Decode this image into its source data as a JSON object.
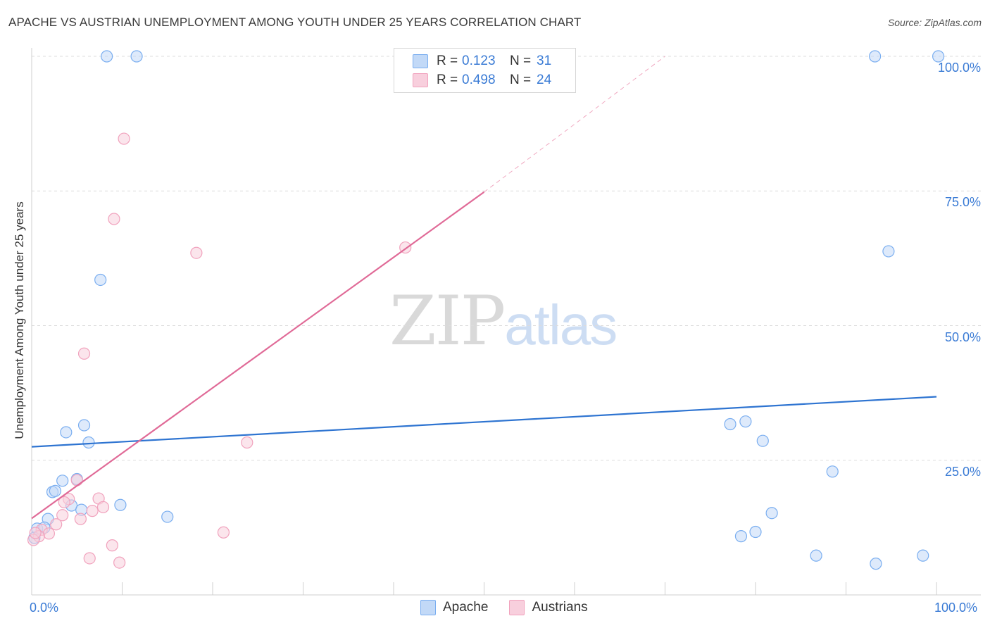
{
  "title": "APACHE VS AUSTRIAN UNEMPLOYMENT AMONG YOUTH UNDER 25 YEARS CORRELATION CHART",
  "source": "Source: ZipAtlas.com",
  "watermark": {
    "zip": "ZIP",
    "atlas": "atlas"
  },
  "legend": {
    "apache": {
      "r_label": "R =",
      "r_value": "0.123",
      "n_label": "N =",
      "n_value": "31"
    },
    "austrians": {
      "r_label": "R =",
      "r_value": "0.498",
      "n_label": "N =",
      "n_value": "24"
    }
  },
  "bottom_legend": {
    "apache": "Apache",
    "austrians": "Austrians"
  },
  "chart_data": {
    "type": "scatter",
    "title": "APACHE VS AUSTRIAN UNEMPLOYMENT AMONG YOUTH UNDER 25 YEARS CORRELATION CHART",
    "xlabel": "",
    "ylabel": "Unemployment Among Youth under 25 years",
    "xlim": [
      0,
      100
    ],
    "ylim": [
      0,
      100
    ],
    "x_tick_labels": [
      "0.0%",
      "100.0%"
    ],
    "y_tick_labels": [
      "25.0%",
      "50.0%",
      "75.0%",
      "100.0%"
    ],
    "y_ticks": [
      25,
      50,
      75,
      100
    ],
    "series": [
      {
        "name": "Apache",
        "color": "#7aaef0",
        "fill": "#c2d9f7",
        "trend": {
          "x": [
            0,
            100
          ],
          "y": [
            27.5,
            36.8
          ],
          "color": "#2e74d1"
        },
        "points": [
          {
            "x": 8.3,
            "y": 100
          },
          {
            "x": 11.6,
            "y": 100
          },
          {
            "x": 93.2,
            "y": 100
          },
          {
            "x": 100.2,
            "y": 100
          },
          {
            "x": 94.7,
            "y": 63.8
          },
          {
            "x": 7.6,
            "y": 58.5
          },
          {
            "x": 5.8,
            "y": 31.5
          },
          {
            "x": 3.8,
            "y": 30.2
          },
          {
            "x": 6.3,
            "y": 28.3
          },
          {
            "x": 77.2,
            "y": 31.7
          },
          {
            "x": 78.9,
            "y": 32.2
          },
          {
            "x": 80.8,
            "y": 28.6
          },
          {
            "x": 88.5,
            "y": 22.9
          },
          {
            "x": 3.4,
            "y": 21.2
          },
          {
            "x": 5.0,
            "y": 21.5
          },
          {
            "x": 2.3,
            "y": 19.1
          },
          {
            "x": 2.6,
            "y": 19.3
          },
          {
            "x": 4.4,
            "y": 16.6
          },
          {
            "x": 5.5,
            "y": 15.8
          },
          {
            "x": 9.8,
            "y": 16.7
          },
          {
            "x": 15.0,
            "y": 14.5
          },
          {
            "x": 1.8,
            "y": 14.1
          },
          {
            "x": 0.6,
            "y": 12.3
          },
          {
            "x": 1.4,
            "y": 12.5
          },
          {
            "x": 0.3,
            "y": 10.6
          },
          {
            "x": 81.8,
            "y": 15.2
          },
          {
            "x": 78.4,
            "y": 10.9
          },
          {
            "x": 80.0,
            "y": 11.7
          },
          {
            "x": 86.7,
            "y": 7.3
          },
          {
            "x": 93.3,
            "y": 5.8
          },
          {
            "x": 98.5,
            "y": 7.3
          }
        ]
      },
      {
        "name": "Austrians",
        "color": "#f1a2bd",
        "fill": "#f8cfdd",
        "trend": {
          "x": [
            0,
            50
          ],
          "y": [
            14.2,
            74.8
          ],
          "color": "#e06a97"
        },
        "trend_extension": {
          "x": [
            50,
            70
          ],
          "y": [
            74.8,
            100
          ]
        },
        "points": [
          {
            "x": 10.2,
            "y": 84.7
          },
          {
            "x": 9.1,
            "y": 69.8
          },
          {
            "x": 18.2,
            "y": 63.5
          },
          {
            "x": 41.3,
            "y": 64.5
          },
          {
            "x": 5.8,
            "y": 44.8
          },
          {
            "x": 23.8,
            "y": 28.3
          },
          {
            "x": 5.0,
            "y": 21.3
          },
          {
            "x": 4.1,
            "y": 17.8
          },
          {
            "x": 3.6,
            "y": 17.2
          },
          {
            "x": 7.4,
            "y": 17.9
          },
          {
            "x": 7.9,
            "y": 16.3
          },
          {
            "x": 6.7,
            "y": 15.6
          },
          {
            "x": 5.4,
            "y": 14.1
          },
          {
            "x": 3.4,
            "y": 14.8
          },
          {
            "x": 2.7,
            "y": 13.1
          },
          {
            "x": 1.1,
            "y": 12.1
          },
          {
            "x": 1.9,
            "y": 11.4
          },
          {
            "x": 0.8,
            "y": 10.9
          },
          {
            "x": 0.2,
            "y": 10.2
          },
          {
            "x": 21.2,
            "y": 11.6
          },
          {
            "x": 8.9,
            "y": 9.2
          },
          {
            "x": 6.4,
            "y": 6.8
          },
          {
            "x": 9.7,
            "y": 6.0
          },
          {
            "x": 0.4,
            "y": 11.5
          }
        ]
      }
    ]
  }
}
